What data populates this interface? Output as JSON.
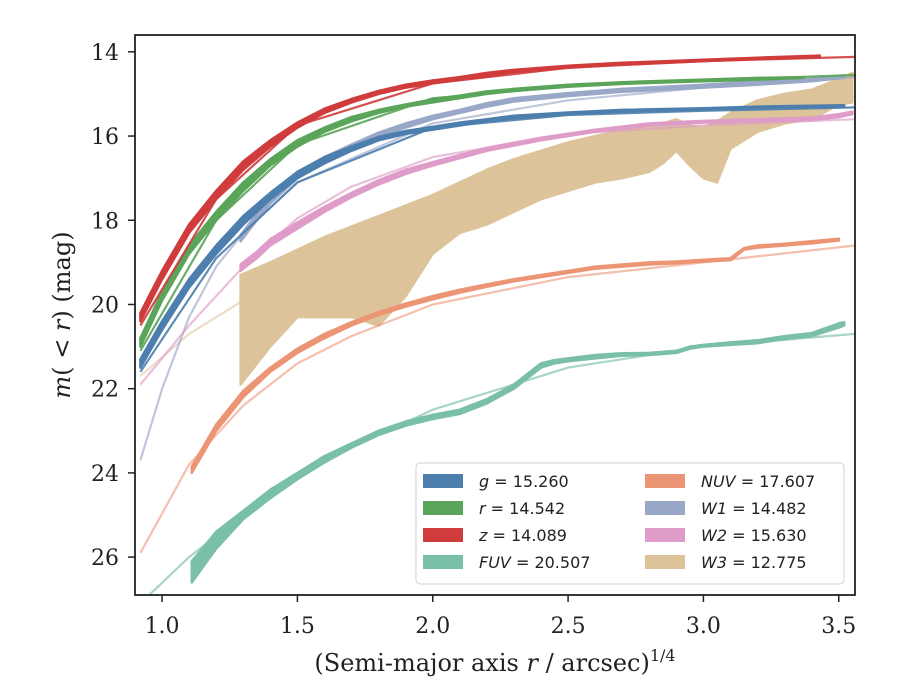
{
  "chart_data": {
    "type": "line",
    "xlabel": "(Semi-major axis r / arcsec)",
    "xlabel_parts": {
      "prefix": "(Semi-major axis ",
      "var": "r",
      "suffix": " / arcsec)",
      "sup": "1/4"
    },
    "ylabel": "m(< r) (mag)",
    "ylabel_parts": {
      "m": "m",
      "open": "(",
      "lt": " < ",
      "r": "r",
      "close": ")",
      "unit": " (mag)"
    },
    "xlim": [
      0.9,
      3.56
    ],
    "ylim": [
      26.9,
      13.6
    ],
    "y_inverted": true,
    "grid": false,
    "legend_position": "lower-right",
    "xticks": [
      1.0,
      1.5,
      2.0,
      2.5,
      3.0,
      3.5
    ],
    "xtick_labels": [
      "1.0",
      "1.5",
      "2.0",
      "2.5",
      "3.0",
      "3.5"
    ],
    "yticks": [
      14,
      16,
      18,
      20,
      22,
      24,
      26
    ],
    "ytick_labels": [
      "14",
      "16",
      "18",
      "20",
      "22",
      "24",
      "26"
    ],
    "legend": [
      {
        "var": "g",
        "rest": " = 15.260",
        "color": "#4c7eae"
      },
      {
        "var": "r",
        "rest": " = 14.542",
        "color": "#5aa55a"
      },
      {
        "var": "z",
        "rest": " = 14.089",
        "color": "#d03c3c"
      },
      {
        "var": "FUV",
        "rest": " = 20.507",
        "color": "#7abfa7"
      },
      {
        "var": "NUV",
        "rest": " = 17.607",
        "color": "#ec9575"
      },
      {
        "var": "W1",
        "rest": " = 14.482",
        "color": "#9aa8c8"
      },
      {
        "var": "W2",
        "rest": " = 15.630",
        "color": "#df9cc8"
      },
      {
        "var": "W3",
        "rest": " = 12.775",
        "color": "#dcc39a"
      }
    ],
    "series": [
      {
        "name": "g",
        "color": "#4c7eae",
        "model_alpha": 0.9,
        "obs_x": [
          0.92,
          1.0,
          1.1,
          1.2,
          1.3,
          1.4,
          1.5,
          1.6,
          1.7,
          1.8,
          1.9,
          2.0,
          2.1,
          2.2,
          2.3,
          2.5,
          2.7,
          3.0,
          3.2,
          3.52
        ],
        "obs_lo": [
          21.5,
          20.6,
          19.6,
          18.8,
          18.1,
          17.5,
          17.0,
          16.65,
          16.35,
          16.1,
          15.95,
          15.85,
          15.75,
          15.65,
          15.58,
          15.48,
          15.42,
          15.37,
          15.33,
          15.3
        ],
        "obs_hi": [
          21.3,
          20.4,
          19.4,
          18.6,
          17.9,
          17.35,
          16.85,
          16.5,
          16.25,
          16.02,
          15.88,
          15.78,
          15.68,
          15.6,
          15.52,
          15.44,
          15.38,
          15.34,
          15.3,
          15.27
        ],
        "model_x": [
          0.92,
          1.2,
          1.5,
          2.0,
          2.5,
          3.0,
          3.56
        ],
        "model_y": [
          21.6,
          18.9,
          17.1,
          15.8,
          15.5,
          15.4,
          15.32
        ]
      },
      {
        "name": "r",
        "color": "#5aa55a",
        "model_alpha": 0.9,
        "obs_x": [
          0.92,
          1.0,
          1.1,
          1.2,
          1.3,
          1.4,
          1.5,
          1.6,
          1.7,
          1.8,
          1.9,
          2.0,
          2.1,
          2.2,
          2.3,
          2.5,
          2.7,
          3.0,
          3.2,
          3.37
        ],
        "obs_lo": [
          21.0,
          19.9,
          18.8,
          18.0,
          17.3,
          16.7,
          16.25,
          15.9,
          15.65,
          15.45,
          15.3,
          15.2,
          15.1,
          15.0,
          14.93,
          14.83,
          14.76,
          14.7,
          14.66,
          14.62
        ],
        "obs_hi": [
          20.8,
          19.7,
          18.6,
          17.8,
          17.1,
          16.55,
          16.1,
          15.8,
          15.55,
          15.38,
          15.25,
          15.13,
          15.04,
          14.94,
          14.88,
          14.78,
          14.72,
          14.66,
          14.62,
          14.6
        ],
        "model_x": [
          0.92,
          1.2,
          1.5,
          2.0,
          2.5,
          3.0,
          3.56
        ],
        "model_y": [
          21.1,
          18.0,
          16.2,
          15.1,
          14.82,
          14.68,
          14.55
        ]
      },
      {
        "name": "z",
        "color": "#d03c3c",
        "model_alpha": 0.9,
        "obs_x": [
          0.92,
          1.0,
          1.1,
          1.2,
          1.3,
          1.4,
          1.5,
          1.6,
          1.7,
          1.8,
          1.9,
          2.0,
          2.1,
          2.2,
          2.3,
          2.5,
          2.7,
          3.0,
          3.2,
          3.43
        ],
        "obs_lo": [
          20.4,
          19.4,
          18.3,
          17.5,
          16.8,
          16.25,
          15.8,
          15.45,
          15.2,
          15.0,
          14.85,
          14.75,
          14.66,
          14.58,
          14.48,
          14.38,
          14.3,
          14.22,
          14.17,
          14.12
        ],
        "obs_hi": [
          20.2,
          19.2,
          18.1,
          17.3,
          16.6,
          16.1,
          15.68,
          15.35,
          15.12,
          14.93,
          14.78,
          14.68,
          14.6,
          14.5,
          14.43,
          14.33,
          14.26,
          14.19,
          14.14,
          14.09
        ],
        "model_x": [
          0.92,
          1.2,
          1.5,
          2.0,
          2.5,
          3.0,
          3.56
        ],
        "model_y": [
          20.5,
          17.5,
          15.75,
          14.75,
          14.38,
          14.22,
          14.12
        ]
      },
      {
        "name": "FUV",
        "color": "#7abfa7",
        "model_alpha": 0.65,
        "obs_x": [
          1.11,
          1.2,
          1.3,
          1.4,
          1.5,
          1.6,
          1.7,
          1.8,
          1.9,
          2.0,
          2.1,
          2.2,
          2.3,
          2.35,
          2.4,
          2.45,
          2.5,
          2.6,
          2.7,
          2.8,
          2.9,
          2.95,
          3.0,
          3.1,
          3.2,
          3.3,
          3.4,
          3.5,
          3.52
        ],
        "obs_lo": [
          26.6,
          25.8,
          25.1,
          24.6,
          24.15,
          23.75,
          23.4,
          23.1,
          22.88,
          22.72,
          22.6,
          22.35,
          22.0,
          21.75,
          21.5,
          21.4,
          21.35,
          21.28,
          21.22,
          21.2,
          21.15,
          21.05,
          21.0,
          20.96,
          20.92,
          20.82,
          20.75,
          20.55,
          20.5
        ],
        "obs_hi": [
          26.1,
          25.4,
          24.9,
          24.4,
          24.0,
          23.6,
          23.3,
          23.0,
          22.78,
          22.62,
          22.5,
          22.25,
          21.9,
          21.65,
          21.4,
          21.32,
          21.28,
          21.2,
          21.16,
          21.15,
          21.1,
          21.0,
          20.96,
          20.9,
          20.85,
          20.75,
          20.68,
          20.45,
          20.42
        ],
        "model_x": [
          0.92,
          1.1,
          1.3,
          1.5,
          1.7,
          2.0,
          2.5,
          3.0,
          3.56
        ],
        "model_y": [
          27.1,
          26.0,
          25.0,
          24.1,
          23.4,
          22.5,
          21.5,
          21.0,
          20.7
        ]
      },
      {
        "name": "NUV",
        "color": "#ec9575",
        "model_alpha": 0.6,
        "obs_x": [
          1.11,
          1.2,
          1.3,
          1.4,
          1.5,
          1.6,
          1.7,
          1.8,
          1.9,
          2.0,
          2.1,
          2.2,
          2.3,
          2.4,
          2.5,
          2.6,
          2.7,
          2.8,
          2.9,
          3.0,
          3.1,
          3.12,
          3.15,
          3.2,
          3.3,
          3.4,
          3.5
        ],
        "obs_lo": [
          24.0,
          23.0,
          22.2,
          21.6,
          21.15,
          20.8,
          20.5,
          20.25,
          20.05,
          19.88,
          19.72,
          19.58,
          19.45,
          19.35,
          19.25,
          19.15,
          19.1,
          19.05,
          19.02,
          18.98,
          18.95,
          18.85,
          18.7,
          18.65,
          18.6,
          18.55,
          18.48
        ],
        "obs_hi": [
          23.85,
          22.85,
          22.05,
          21.5,
          21.05,
          20.7,
          20.42,
          20.18,
          19.98,
          19.8,
          19.65,
          19.52,
          19.4,
          19.3,
          19.2,
          19.1,
          19.05,
          19.0,
          18.98,
          18.94,
          18.9,
          18.8,
          18.66,
          18.6,
          18.56,
          18.5,
          18.44
        ],
        "model_x": [
          0.92,
          1.1,
          1.3,
          1.5,
          1.7,
          2.0,
          2.5,
          3.0,
          3.56
        ],
        "model_y": [
          25.9,
          23.8,
          22.4,
          21.4,
          20.75,
          20.0,
          19.35,
          19.0,
          18.6
        ]
      },
      {
        "name": "W1",
        "color": "#9aa8c8",
        "model_alpha": 0.65,
        "obs_x": [
          1.29,
          1.35,
          1.4,
          1.5,
          1.6,
          1.7,
          1.8,
          1.9,
          2.0,
          2.1,
          2.2,
          2.3,
          2.5,
          2.7,
          3.0,
          3.2,
          3.4,
          3.52
        ],
        "obs_lo": [
          18.5,
          18.0,
          17.6,
          17.0,
          16.6,
          16.3,
          16.0,
          15.8,
          15.6,
          15.45,
          15.3,
          15.18,
          15.05,
          14.95,
          14.85,
          14.78,
          14.7,
          14.62
        ],
        "obs_hi": [
          18.35,
          17.85,
          17.5,
          16.9,
          16.5,
          16.2,
          15.92,
          15.7,
          15.52,
          15.38,
          15.22,
          15.1,
          14.98,
          14.88,
          14.78,
          14.7,
          14.64,
          14.56
        ],
        "model_x": [
          0.92,
          1.0,
          1.1,
          1.2,
          1.3,
          1.5,
          2.0,
          2.5,
          3.0,
          3.56
        ],
        "model_y": [
          23.7,
          22.0,
          20.3,
          19.1,
          18.3,
          17.1,
          15.7,
          15.15,
          14.85,
          14.6
        ]
      },
      {
        "name": "W2",
        "color": "#df9cc8",
        "model_alpha": 0.65,
        "obs_x": [
          1.29,
          1.35,
          1.4,
          1.5,
          1.6,
          1.7,
          1.8,
          1.9,
          2.0,
          2.2,
          2.4,
          2.6,
          2.8,
          3.0,
          3.2,
          3.4,
          3.5,
          3.55
        ],
        "obs_lo": [
          19.2,
          18.9,
          18.6,
          18.2,
          17.8,
          17.45,
          17.15,
          16.9,
          16.7,
          16.35,
          16.1,
          15.9,
          15.75,
          15.68,
          15.65,
          15.62,
          15.55,
          15.48
        ],
        "obs_hi": [
          19.05,
          18.75,
          18.45,
          18.05,
          17.68,
          17.35,
          17.05,
          16.8,
          16.62,
          16.28,
          16.04,
          15.85,
          15.7,
          15.64,
          15.6,
          15.56,
          15.48,
          15.42
        ],
        "model_x": [
          0.92,
          1.1,
          1.3,
          1.5,
          1.7,
          2.0,
          2.5,
          3.0,
          3.56
        ],
        "model_y": [
          21.9,
          20.5,
          19.1,
          17.95,
          17.2,
          16.5,
          15.95,
          15.75,
          15.6
        ]
      },
      {
        "name": "W3",
        "color": "#dcc39a",
        "model_alpha": 0.55,
        "obs_x": [
          1.29,
          1.4,
          1.5,
          1.6,
          1.7,
          1.8,
          1.9,
          2.0,
          2.1,
          2.2,
          2.3,
          2.4,
          2.5,
          2.6,
          2.7,
          2.8,
          2.85,
          2.9,
          2.95,
          3.0,
          3.05,
          3.1,
          3.15,
          3.2,
          3.3,
          3.4,
          3.5,
          3.55
        ],
        "obs_lo": [
          21.9,
          21.0,
          20.3,
          20.3,
          20.3,
          20.5,
          19.8,
          18.8,
          18.3,
          18.1,
          17.8,
          17.5,
          17.3,
          17.1,
          17.0,
          16.85,
          16.65,
          16.35,
          16.7,
          17.0,
          17.1,
          16.3,
          16.1,
          15.9,
          15.7,
          15.6,
          15.25,
          15.2
        ],
        "obs_hi": [
          19.3,
          19.0,
          18.7,
          18.4,
          18.15,
          17.9,
          17.65,
          17.4,
          17.1,
          16.8,
          16.55,
          16.35,
          16.15,
          16.0,
          15.85,
          15.75,
          15.7,
          15.6,
          15.75,
          15.8,
          15.65,
          15.45,
          15.3,
          15.15,
          15.0,
          14.9,
          14.65,
          14.5
        ],
        "model_x": [
          0.92,
          1.1,
          1.3,
          1.5,
          1.7,
          2.0,
          2.5,
          3.0,
          3.56
        ],
        "model_y": [
          21.7,
          20.7,
          19.9,
          19.2,
          18.6,
          17.9,
          16.85,
          15.95,
          15.05
        ]
      }
    ]
  }
}
